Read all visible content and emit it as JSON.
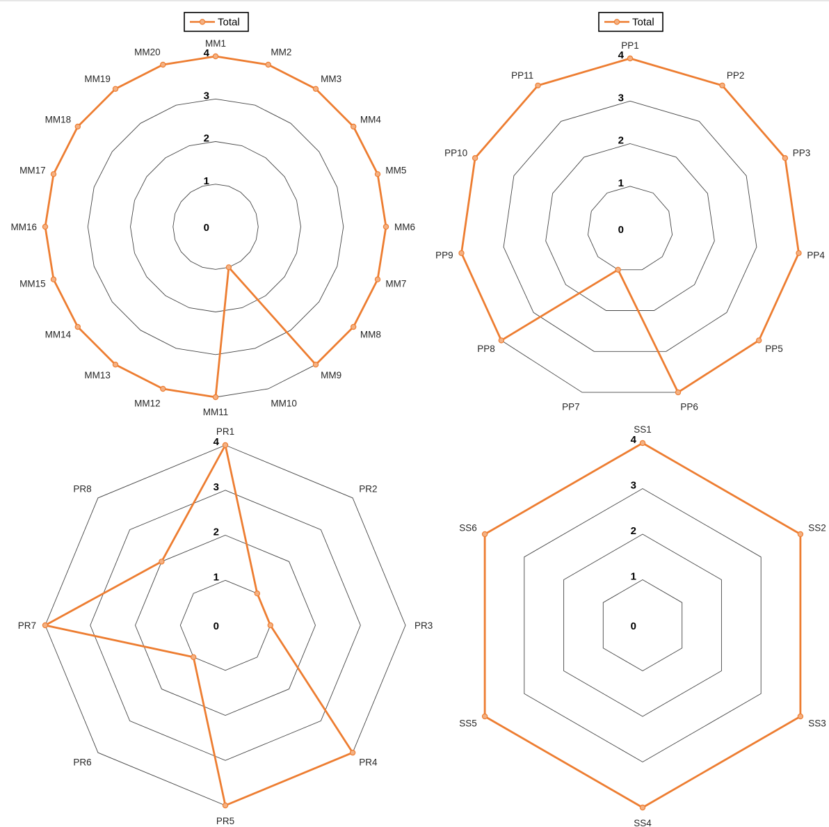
{
  "chart_data": [
    {
      "type": "radar",
      "categories": [
        "MM1",
        "MM2",
        "MM3",
        "MM4",
        "MM5",
        "MM6",
        "MM7",
        "MM8",
        "MM9",
        "MM10",
        "MM11",
        "MM12",
        "MM13",
        "MM14",
        "MM15",
        "MM16",
        "MM17",
        "MM18",
        "MM19",
        "MM20"
      ],
      "series": [
        {
          "name": "Total",
          "values": [
            4,
            4,
            4,
            4,
            4,
            4,
            4,
            4,
            4,
            1,
            4,
            4,
            4,
            4,
            4,
            4,
            4,
            4,
            4,
            4
          ]
        }
      ],
      "ticks": [
        "0",
        "1",
        "2",
        "3",
        "4"
      ],
      "rlim": [
        0,
        4
      ],
      "legend": "top"
    },
    {
      "type": "radar",
      "categories": [
        "PP1",
        "PP2",
        "PP3",
        "PP4",
        "PP5",
        "PP6",
        "PP7",
        "PP8",
        "PP9",
        "PP10",
        "PP11"
      ],
      "series": [
        {
          "name": "Total",
          "values": [
            4,
            4,
            4,
            4,
            4,
            4,
            1,
            4,
            4,
            4,
            4
          ]
        }
      ],
      "ticks": [
        "0",
        "1",
        "2",
        "3",
        "4"
      ],
      "rlim": [
        0,
        4
      ],
      "legend": "top"
    },
    {
      "type": "radar",
      "categories": [
        "PR1",
        "PR2",
        "PR3",
        "PR4",
        "PR5",
        "PR6",
        "PR7",
        "PR8"
      ],
      "series": [
        {
          "name": "",
          "values": [
            4,
            1,
            1,
            4,
            4,
            1,
            4,
            2
          ]
        }
      ],
      "ticks": [
        "0",
        "1",
        "2",
        "3",
        "4"
      ],
      "rlim": [
        0,
        4
      ],
      "legend": "none"
    },
    {
      "type": "radar",
      "categories": [
        "SS1",
        "SS2",
        "SS3",
        "SS4",
        "SS5",
        "SS6"
      ],
      "series": [
        {
          "name": "",
          "values": [
            4,
            4,
            4,
            4,
            4,
            4
          ]
        }
      ],
      "ticks": [
        "0",
        "1",
        "2",
        "3",
        "4"
      ],
      "rlim": [
        0,
        4
      ],
      "legend": "none"
    }
  ],
  "colors": {
    "series": "#ED7D31",
    "marker_fill": "#F4B183",
    "grid": "#444444"
  }
}
